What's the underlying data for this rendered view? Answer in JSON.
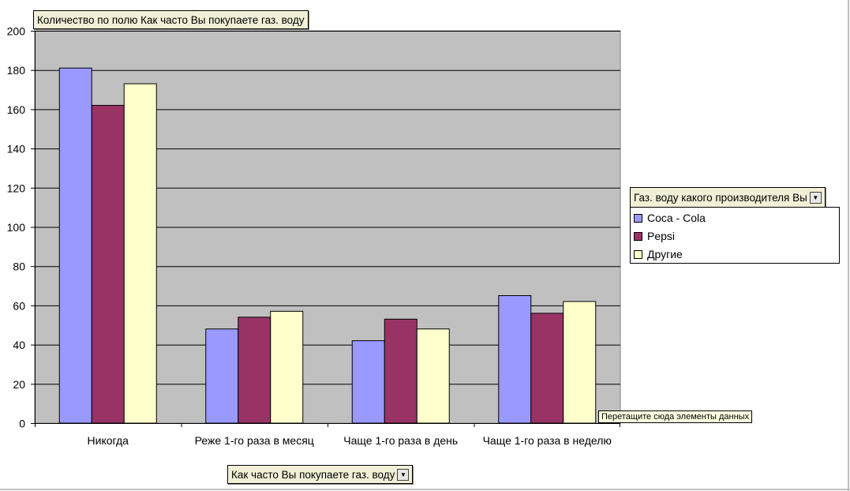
{
  "pivot": {
    "data_field_label": "Количество по полю Как часто Вы покупаете газ. воду",
    "series_field_label": "Газ. воду какого производителя Вы",
    "category_field_label": "Как часто Вы покупаете газ. воду",
    "drop_hint": "Перетащите сюда элементы данных"
  },
  "colors": {
    "plot_bg": "#c0c0c0",
    "button_bg": "#f2efd7"
  },
  "chart_data": {
    "type": "bar",
    "categories": [
      "Никогда",
      "Реже 1-го раза в месяц",
      "Чаще 1-го раза в день",
      "Чаще 1-го раза в неделю"
    ],
    "series": [
      {
        "name": "Coca - Cola",
        "color": "#9999ff",
        "values": [
          181,
          48,
          42,
          65
        ]
      },
      {
        "name": "Pepsi",
        "color": "#993366",
        "values": [
          162,
          54,
          53,
          56
        ]
      },
      {
        "name": "Другие",
        "color": "#ffffcc",
        "values": [
          173,
          57,
          48,
          62
        ]
      }
    ],
    "ylim": [
      0,
      200
    ],
    "yticks": [
      0,
      20,
      40,
      60,
      80,
      100,
      120,
      140,
      160,
      180,
      200
    ],
    "grid": true,
    "legend_position": "right"
  }
}
